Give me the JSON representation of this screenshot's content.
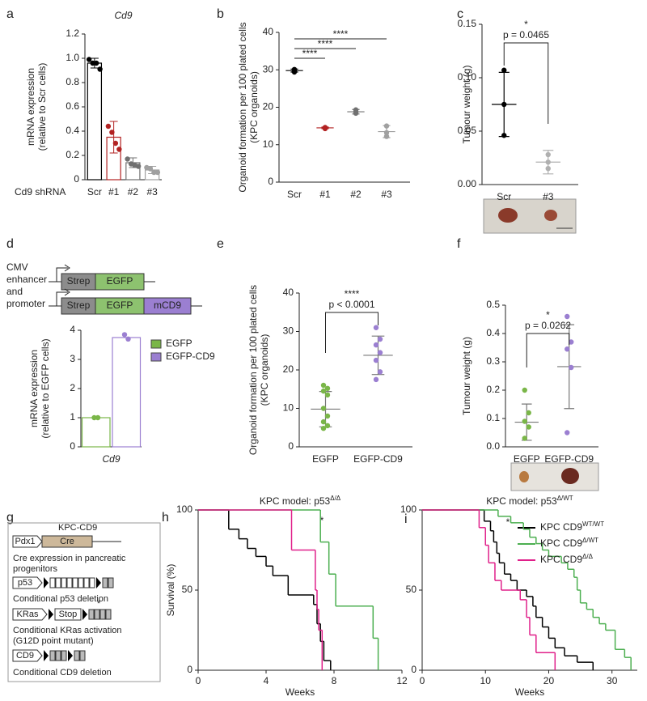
{
  "chart_data": [
    {
      "type": "bar_dot",
      "label": "a",
      "title": "Cd9",
      "ylabel": [
        "mRNA expression",
        "(relative to Scr cells)"
      ],
      "xlabel": "Cd9 shRNA",
      "categories": [
        "Scr",
        "#1",
        "#2",
        "#3"
      ],
      "values": [
        0.96,
        0.35,
        0.14,
        0.08
      ],
      "errors": [
        0.04,
        0.13,
        0.04,
        0.03
      ],
      "points": [
        [
          0.99,
          0.96,
          0.96,
          0.91
        ],
        [
          0.44,
          0.39,
          0.3,
          0.25
        ],
        [
          0.17,
          0.13,
          0.12,
          0.11
        ],
        [
          0.1,
          0.09,
          0.06,
          0.06
        ]
      ],
      "colors": [
        "#000000",
        "#b22222",
        "#707070",
        "#a0a0a0"
      ],
      "ylim": [
        0,
        1.2
      ],
      "yticks": [
        0,
        0.2,
        0.4,
        0.6,
        0.8,
        {
          "value": 1,
          "label": "1.0"
        },
        1.2
      ]
    },
    {
      "type": "dot",
      "label": "b",
      "ylabel": [
        "Organoid formation per 100 plated cells",
        "(KPC organoids)"
      ],
      "categories": [
        "Scr",
        "#1",
        "#2",
        "#3"
      ],
      "means": [
        29.8,
        14.5,
        18.8,
        13.5
      ],
      "errors": [
        0.4,
        0.2,
        0.6,
        1.6
      ],
      "points": [
        [
          29.4,
          30.1,
          29.7
        ],
        [
          14.3,
          14.6,
          14.5
        ],
        [
          18.4,
          19.3,
          18.7
        ],
        [
          15,
          13.2,
          12.2
        ]
      ],
      "colors": [
        "#000000",
        "#b22222",
        "#707070",
        "#a0a0a0"
      ],
      "ylim": [
        0,
        40
      ],
      "yticks": [
        0,
        10,
        20,
        30,
        40
      ],
      "brackets": [
        {
          "categories": [
            "Scr",
            "#1"
          ],
          "significance": "****"
        },
        {
          "categories": [
            "Scr",
            "#2"
          ],
          "significance": "****"
        },
        {
          "categories": [
            "Scr",
            "#3"
          ],
          "significance": "****"
        }
      ]
    },
    {
      "type": "dot",
      "label": "c",
      "ylabel": [
        "Tumour weight (g)"
      ],
      "categories": [
        "Scr",
        "#3"
      ],
      "means": [
        0.075,
        0.021
      ],
      "errors": [
        0.03,
        0.011
      ],
      "points": [
        [
          0.107,
          0.075,
          0.046
        ],
        [
          0.028,
          0.021,
          0.015
        ]
      ],
      "colors": [
        "#000000",
        "#b0b0b0"
      ],
      "ylim": [
        0,
        0.15
      ],
      "yticks": [
        {
          "value": 0,
          "label": "0.00"
        },
        {
          "value": 0.05,
          "label": "0.05"
        },
        {
          "value": 0.1,
          "label": "0.10"
        },
        {
          "value": 0.15,
          "label": "0.15"
        }
      ],
      "brackets": [
        {
          "categories": [
            "Scr",
            "#3"
          ],
          "significance": "*",
          "label": "p = 0.0465"
        }
      ]
    },
    {
      "type": "bar_dot",
      "label": "d",
      "ylabel": [
        "mRNA expression",
        "(relative to EGFP cells)"
      ],
      "xlabel": "Cd9",
      "series": [
        {
          "name": "EGFP",
          "color": "#7ab648",
          "values": [
            1.0
          ],
          "points": [
            [
              1.0,
              1.0
            ]
          ]
        },
        {
          "name": "EGFP-CD9",
          "color": "#9b7fd1",
          "values": [
            3.75
          ],
          "points": [
            [
              3.85,
              3.7
            ]
          ]
        }
      ],
      "ylim": [
        0,
        4
      ],
      "yticks": [
        0,
        1,
        2,
        3,
        4
      ]
    },
    {
      "type": "dot",
      "label": "e",
      "ylabel": [
        "Organoid formation per 100 plated cells",
        "(KPC organoids)"
      ],
      "categories": [
        "EGFP",
        "EGFP-CD9"
      ],
      "means": [
        9.8,
        23.8
      ],
      "errors": [
        4.6,
        5.0
      ],
      "points": [
        [
          16,
          15.2,
          14.5,
          13.5,
          10,
          8,
          6.5,
          5.5,
          4.8
        ],
        [
          31,
          28,
          26.5,
          24.5,
          22.5,
          19.5,
          17.5
        ]
      ],
      "colors": [
        "#7ab648",
        "#9b7fd1"
      ],
      "line_color": "#777777",
      "ylim": [
        0,
        40
      ],
      "yticks": [
        0,
        10,
        20,
        30,
        40
      ],
      "brackets": [
        {
          "categories": [
            "EGFP",
            "EGFP-CD9"
          ],
          "significance": "****",
          "label": "p < 0.0001"
        }
      ]
    },
    {
      "type": "dot",
      "label": "f",
      "ylabel": [
        "Tumour weight (g)"
      ],
      "categories": [
        "EGFP",
        "EGFP-CD9"
      ],
      "means": [
        0.087,
        0.283
      ],
      "errors": [
        0.064,
        0.148
      ],
      "points": [
        [
          0.2,
          0.12,
          0.09,
          0.07,
          0.03
        ],
        [
          0.46,
          0.37,
          0.345,
          0.28,
          0.05
        ]
      ],
      "colors": [
        "#7ab648",
        "#9b7fd1"
      ],
      "line_color": "#777777",
      "ylim": [
        0,
        0.5
      ],
      "yticks": [
        {
          "value": 0,
          "label": "0.0"
        },
        0.1,
        0.2,
        0.3,
        0.4,
        0.5
      ],
      "brackets": [
        {
          "categories": [
            "EGFP",
            "EGFP-CD9"
          ],
          "significance": "*",
          "label": "p = 0.0262"
        }
      ]
    },
    {
      "type": "survival",
      "label": "h",
      "title": "KPC model: p53",
      "title_sup": "Δ/Δ",
      "xlabel": "Weeks",
      "ylabel": [
        "Survival (%)"
      ],
      "significance": "*",
      "xlim": [
        0,
        12
      ],
      "xticks": [
        0,
        4,
        8,
        12
      ],
      "ylim": [
        0,
        100
      ],
      "yticks": [
        0,
        50,
        100
      ],
      "series": [
        {
          "color": "#000000",
          "x": [
            0,
            1.8,
            2.4,
            2.9,
            3.4,
            4.0,
            4.4,
            5.3,
            6.8,
            7.0,
            7.2,
            7.4,
            7.8
          ],
          "values": [
            100,
            88,
            82,
            76,
            71,
            65,
            59,
            47,
            41,
            29,
            18,
            6,
            0
          ]
        },
        {
          "color": "#4caf50",
          "x": [
            0,
            7.2,
            7.7,
            8.1,
            10.3,
            10.6
          ],
          "values": [
            100,
            80,
            60,
            40,
            20,
            0
          ]
        },
        {
          "color": "#e0208a",
          "x": [
            0,
            5.5,
            6.9,
            7.0,
            7.1,
            7.3
          ],
          "values": [
            100,
            75,
            50,
            38,
            25,
            0
          ]
        }
      ]
    },
    {
      "type": "survival",
      "label": "i",
      "title": "KPC model: p53",
      "title_sup": "Δ/WT",
      "xlabel": "Weeks",
      "significance": "*",
      "xlim": [
        0,
        34
      ],
      "xticks": [
        0,
        10,
        20,
        30
      ],
      "ylim": [
        0,
        100
      ],
      "yticks": [
        0,
        50,
        100
      ],
      "series": [
        {
          "name": "KPC CD9",
          "name_sup": "WT/WT",
          "color": "#000000",
          "x": [
            0,
            9.8,
            10.8,
            11.3,
            11.8,
            12.2,
            13.0,
            14.0,
            15.0,
            16.5,
            17.5,
            18.0,
            19.0,
            20.0,
            21.0,
            22.5,
            24.5,
            27.0
          ],
          "values": [
            100,
            93,
            87,
            80,
            73,
            67,
            60,
            56,
            50,
            46,
            40,
            33,
            27,
            20,
            14,
            9,
            5,
            0
          ]
        },
        {
          "name": "KPC CD9",
          "name_sup": "Δ/WT",
          "color": "#4caf50",
          "x": [
            0,
            12,
            14,
            16,
            17,
            18,
            19,
            20,
            22,
            23,
            24,
            24.5,
            25,
            26,
            27,
            28,
            29,
            30.5,
            32,
            33
          ],
          "values": [
            100,
            96,
            92,
            88,
            83,
            79,
            75,
            71,
            67,
            63,
            58,
            50,
            42,
            38,
            33,
            29,
            25,
            13,
            8,
            0
          ]
        },
        {
          "name": "KPC CD9",
          "name_sup": "Δ/Δ",
          "color": "#e0208a",
          "x": [
            0,
            9,
            10,
            10.5,
            11.5,
            12.5,
            15.5,
            16.5,
            17,
            18,
            21
          ],
          "values": [
            100,
            89,
            78,
            67,
            56,
            50,
            44,
            33,
            22,
            11,
            0
          ]
        }
      ]
    }
  ],
  "diagram_d": {
    "promoter_label": [
      "CMV",
      "enhancer",
      "and",
      "promoter"
    ],
    "constructs": [
      [
        "Strep",
        "EGFP"
      ],
      [
        "Strep",
        "EGFP",
        "mCD9"
      ]
    ]
  },
  "diagram_g": {
    "label": "g",
    "title": "KPC-CD9",
    "rows": [
      {
        "boxes": [
          "Pdx1",
          "Cre"
        ],
        "caption": [
          "Cre expression in pancreatic",
          "progenitors"
        ]
      },
      {
        "boxes": [
          "p53"
        ],
        "caption": [
          "Conditional p53 deletion"
        ]
      },
      {
        "boxes": [
          "KRas",
          "Stop"
        ],
        "mutation": "*",
        "caption": [
          "Conditional KRas activation",
          "(G12D point mutant)"
        ]
      },
      {
        "boxes": [
          "CD9"
        ],
        "caption": [
          "Conditional CD9 deletion"
        ]
      }
    ]
  }
}
